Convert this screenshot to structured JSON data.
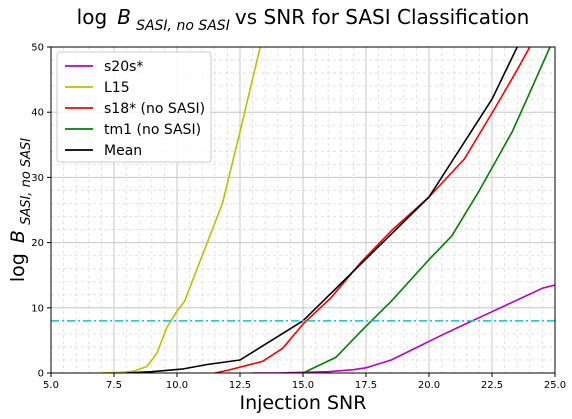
{
  "chart_data": {
    "type": "line",
    "title": {
      "prefix": "log",
      "symbol": "B",
      "subscript": "SASI, no SASI",
      "suffix": " vs SNR for SASI Classification"
    },
    "xlabel": "Injection SNR",
    "ylabel": {
      "prefix": "log",
      "symbol": "B",
      "subscript": "SASI, no SASI"
    },
    "xlim": [
      5.0,
      25.0
    ],
    "ylim": [
      0,
      50
    ],
    "xticks": [
      5.0,
      7.5,
      10.0,
      12.5,
      15.0,
      17.5,
      20.0,
      22.5,
      25.0
    ],
    "xtick_labels": [
      "5.0",
      "7.5",
      "10.0",
      "12.5",
      "15.0",
      "17.5",
      "20.0",
      "22.5",
      "25.0"
    ],
    "yticks": [
      0,
      10,
      20,
      30,
      40,
      50
    ],
    "ytick_labels": [
      "0",
      "10",
      "20",
      "30",
      "40",
      "50"
    ],
    "grid": true,
    "legend_position": "top-left",
    "threshold": {
      "y": 8,
      "color": "#17becf",
      "style": "dash-dot"
    },
    "series": [
      {
        "name": "s20s*",
        "color": "#bf00bf",
        "x": [
          13.0,
          14.0,
          15.0,
          16.0,
          17.0,
          17.5,
          18.5,
          19.5,
          20.5,
          21.5,
          22.5,
          23.5,
          24.5,
          25.0
        ],
        "y": [
          0.0,
          0.0,
          0.1,
          0.2,
          0.5,
          0.8,
          2.0,
          3.9,
          5.8,
          7.6,
          9.4,
          11.2,
          13.0,
          13.5
        ]
      },
      {
        "name": "L15",
        "color": "#bfbf00",
        "x": [
          7.0,
          7.8,
          8.3,
          8.8,
          9.2,
          9.6,
          10.0,
          10.3,
          11.0,
          11.8,
          12.5,
          13.3
        ],
        "y": [
          0.0,
          0.1,
          0.3,
          1.0,
          3.0,
          7.0,
          9.5,
          11.0,
          18.0,
          26.0,
          37.0,
          50.0
        ]
      },
      {
        "name": "s18* (no SASI)",
        "color": "#ff0000",
        "x": [
          11.5,
          12.0,
          12.8,
          13.4,
          14.2,
          15.0,
          16.1,
          17.3,
          18.5,
          20.0,
          21.4,
          22.6,
          23.5,
          24.0
        ],
        "y": [
          0.0,
          0.4,
          1.2,
          1.8,
          3.8,
          7.5,
          11.5,
          17.0,
          21.8,
          27.0,
          32.8,
          40.5,
          46.5,
          50.0
        ]
      },
      {
        "name": "tm1 (no SASI)",
        "color": "#008000",
        "x": [
          15.0,
          16.3,
          17.4,
          18.5,
          20.0,
          20.9,
          22.0,
          23.3,
          24.0,
          24.8
        ],
        "y": [
          0.0,
          2.4,
          6.8,
          11.0,
          17.4,
          21.0,
          28.0,
          37.0,
          43.0,
          50.0
        ]
      },
      {
        "name": "Mean",
        "color": "#000000",
        "x": [
          8.0,
          9.0,
          10.2,
          11.2,
          12.5,
          15.0,
          17.5,
          20.0,
          22.5,
          23.5
        ],
        "y": [
          0.0,
          0.2,
          0.6,
          1.3,
          2.0,
          8.0,
          17.5,
          27.0,
          42.0,
          50.0
        ]
      }
    ]
  }
}
